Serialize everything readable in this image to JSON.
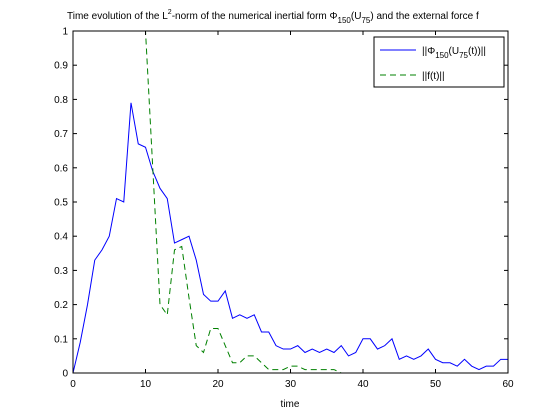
{
  "chart_data": {
    "type": "line",
    "title": {
      "part1": "Time evolution of the L",
      "sup1": "2",
      "part2": "-norm of the numerical inertial form   Φ",
      "sub1": "150",
      "part3": "(U",
      "sub2": "75",
      "part4": ") and the external force f"
    },
    "xlabel": "time",
    "ylabel": "",
    "xlim": [
      0,
      60
    ],
    "ylim": [
      0,
      1
    ],
    "xticks": [
      "0",
      "10",
      "20",
      "30",
      "40",
      "50",
      "60"
    ],
    "yticks": [
      "0",
      "0.1",
      "0.2",
      "0.3",
      "0.4",
      "0.5",
      "0.6",
      "0.7",
      "0.8",
      "0.9",
      "1"
    ],
    "grid": false,
    "legend_position": "top-right",
    "legend": {
      "entry1": {
        "p1": "||Φ",
        "sub1": "150",
        "p2": "(U",
        "sub2": "75",
        "p3": "(t))||"
      },
      "entry2": {
        "p1": "||f(t)||"
      }
    },
    "series": [
      {
        "color": "#0000ff",
        "dash": "solid",
        "x": [
          0,
          1,
          2,
          3,
          4,
          5,
          6,
          7,
          8,
          9,
          10,
          11,
          12,
          13,
          14,
          15,
          16,
          17,
          18,
          19,
          20,
          21,
          22,
          23,
          24,
          25,
          26,
          27,
          28,
          29,
          30,
          31,
          32,
          33,
          34,
          35,
          36,
          37,
          38,
          39,
          40,
          41,
          42,
          43,
          44,
          45,
          46,
          47,
          48,
          49,
          50,
          51,
          52,
          53,
          54,
          55,
          56,
          57,
          58,
          59,
          60
        ],
        "y": [
          0.0,
          0.09,
          0.2,
          0.33,
          0.36,
          0.4,
          0.51,
          0.5,
          0.79,
          0.67,
          0.66,
          0.59,
          0.54,
          0.51,
          0.38,
          0.39,
          0.4,
          0.33,
          0.23,
          0.21,
          0.21,
          0.24,
          0.16,
          0.17,
          0.16,
          0.17,
          0.12,
          0.12,
          0.08,
          0.07,
          0.07,
          0.08,
          0.06,
          0.07,
          0.06,
          0.07,
          0.06,
          0.08,
          0.05,
          0.06,
          0.1,
          0.1,
          0.07,
          0.08,
          0.1,
          0.04,
          0.05,
          0.04,
          0.05,
          0.07,
          0.04,
          0.03,
          0.03,
          0.02,
          0.04,
          0.02,
          0.01,
          0.02,
          0.02,
          0.04,
          0.04
        ]
      },
      {
        "color": "#008000",
        "dash": "dashed",
        "x": [
          0,
          1,
          2,
          3,
          4,
          5,
          6,
          7,
          8,
          9,
          10,
          11,
          12,
          13,
          14,
          15,
          16,
          17,
          18,
          19,
          20,
          21,
          22,
          23,
          24,
          25,
          26,
          27,
          28,
          29,
          30,
          31,
          32,
          33,
          34,
          35,
          36,
          37,
          38,
          39,
          40,
          41,
          42,
          43,
          44,
          45,
          46,
          47,
          48,
          49,
          50,
          51,
          52,
          53,
          54,
          55,
          56,
          57,
          58,
          59,
          60
        ],
        "y": [
          1.0,
          1.0,
          1.0,
          1.0,
          1.0,
          1.0,
          1.0,
          1.0,
          1.0,
          1.0,
          1.0,
          0.6,
          0.2,
          0.17,
          0.36,
          0.37,
          0.22,
          0.08,
          0.06,
          0.13,
          0.13,
          0.08,
          0.03,
          0.03,
          0.05,
          0.05,
          0.03,
          0.01,
          0.01,
          0.01,
          0.02,
          0.02,
          0.01,
          0.01,
          0.01,
          0.01,
          0.01,
          0.0,
          0.0,
          0.0,
          0.0,
          0.0,
          0.0,
          0.0,
          0.0,
          0.0,
          0.0,
          0.0,
          0.0,
          0.0,
          0.0,
          0.0,
          0.0,
          0.0,
          0.0,
          0.0,
          0.0,
          0.0,
          0.0,
          0.0,
          0.0
        ]
      }
    ]
  }
}
